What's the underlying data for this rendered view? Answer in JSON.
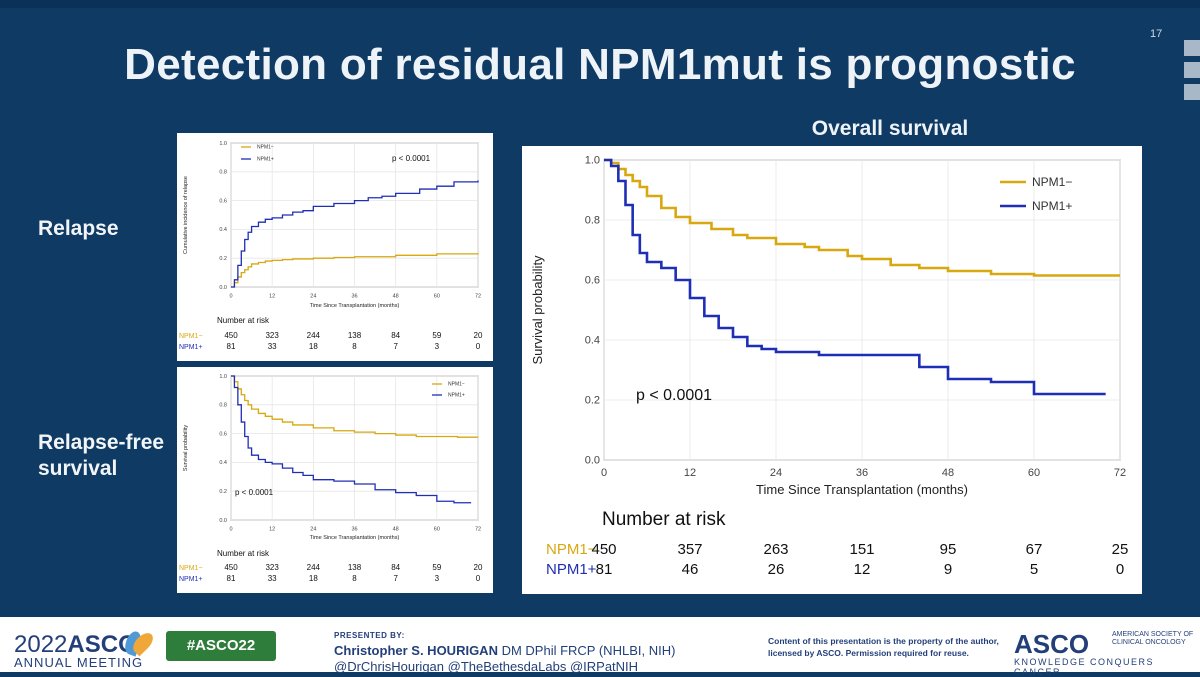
{
  "slide": {
    "number": "17",
    "title": "Detection of residual NPM1mut is prognostic",
    "labels": {
      "relapse": "Relapse",
      "rfs_line1": "Relapse-free",
      "rfs_line2": "survival"
    },
    "os_title": "Overall survival"
  },
  "colors": {
    "background": "#0f3a63",
    "npm1_neg": "#d7a80f",
    "npm1_pos": "#1f2fb5",
    "footer_text": "#233f7a",
    "hashtag_bg": "#2f7d3a"
  },
  "chart_data": [
    {
      "id": "relapse",
      "type": "line",
      "ylabel": "Cumulative incidence of relapse",
      "xlabel": "Time Since Transplantation (months)",
      "xlim": [
        0,
        72
      ],
      "ylim": [
        0,
        1.0
      ],
      "x_ticks": [
        "0",
        "12",
        "24",
        "36",
        "48",
        "60",
        "72"
      ],
      "y_ticks": [
        "0.0",
        "0.2",
        "0.4",
        "0.6",
        "0.8",
        "1.0"
      ],
      "grid": true,
      "legend": "top-left",
      "annotation": "p < 0.0001",
      "series": [
        {
          "name": "NPM1−",
          "color": "#d7a80f",
          "step": true,
          "x": [
            0,
            1,
            2,
            3,
            4,
            5,
            6,
            8,
            10,
            12,
            15,
            18,
            24,
            30,
            36,
            48,
            60,
            72
          ],
          "y": [
            0,
            0.03,
            0.07,
            0.1,
            0.12,
            0.14,
            0.16,
            0.17,
            0.18,
            0.185,
            0.19,
            0.195,
            0.2,
            0.205,
            0.21,
            0.22,
            0.23,
            0.235
          ]
        },
        {
          "name": "NPM1+",
          "color": "#1f2fb5",
          "step": true,
          "x": [
            0,
            1,
            2,
            3,
            4,
            5,
            6,
            8,
            10,
            12,
            15,
            18,
            21,
            24,
            30,
            36,
            40,
            44,
            48,
            55,
            60,
            65,
            72
          ],
          "y": [
            0,
            0.05,
            0.15,
            0.25,
            0.33,
            0.38,
            0.42,
            0.45,
            0.47,
            0.48,
            0.5,
            0.52,
            0.53,
            0.56,
            0.58,
            0.6,
            0.62,
            0.63,
            0.65,
            0.68,
            0.7,
            0.73,
            0.74
          ]
        }
      ],
      "risk_table": {
        "header": "Number at risk",
        "rows": [
          {
            "name": "NPM1−",
            "values": [
              "450",
              "323",
              "244",
              "138",
              "84",
              "59",
              "20"
            ]
          },
          {
            "name": "NPM1+",
            "values": [
              "81",
              "33",
              "18",
              "8",
              "7",
              "3",
              "0"
            ]
          }
        ]
      }
    },
    {
      "id": "rfs",
      "type": "line",
      "ylabel": "Survival probability",
      "xlabel": "Time Since Transplantation (months)",
      "xlim": [
        0,
        72
      ],
      "ylim": [
        0,
        1.0
      ],
      "x_ticks": [
        "0",
        "12",
        "24",
        "36",
        "48",
        "60",
        "72"
      ],
      "y_ticks": [
        "0.0",
        "0.2",
        "0.4",
        "0.6",
        "0.8",
        "1.0"
      ],
      "grid": true,
      "legend": "top-right",
      "annotation": "p < 0.0001",
      "series": [
        {
          "name": "NPM1−",
          "color": "#d7a80f",
          "step": true,
          "x": [
            0,
            1,
            2,
            3,
            4,
            5,
            6,
            8,
            10,
            12,
            15,
            18,
            24,
            30,
            36,
            42,
            48,
            54,
            60,
            66,
            72
          ],
          "y": [
            1.0,
            0.96,
            0.91,
            0.87,
            0.83,
            0.8,
            0.77,
            0.74,
            0.72,
            0.7,
            0.68,
            0.66,
            0.64,
            0.62,
            0.61,
            0.6,
            0.59,
            0.58,
            0.58,
            0.575,
            0.575
          ]
        },
        {
          "name": "NPM1+",
          "color": "#1f2fb5",
          "step": true,
          "x": [
            0,
            1,
            2,
            3,
            4,
            5,
            6,
            8,
            10,
            12,
            15,
            18,
            21,
            24,
            30,
            36,
            42,
            48,
            54,
            60,
            65,
            70
          ],
          "y": [
            1.0,
            0.92,
            0.8,
            0.68,
            0.58,
            0.5,
            0.45,
            0.42,
            0.4,
            0.39,
            0.36,
            0.33,
            0.31,
            0.28,
            0.27,
            0.25,
            0.21,
            0.19,
            0.17,
            0.13,
            0.12,
            0.12
          ]
        }
      ],
      "risk_table": {
        "header": "Number at risk",
        "rows": [
          {
            "name": "NPM1−",
            "values": [
              "450",
              "323",
              "244",
              "138",
              "84",
              "59",
              "20"
            ]
          },
          {
            "name": "NPM1+",
            "values": [
              "81",
              "33",
              "18",
              "8",
              "7",
              "3",
              "0"
            ]
          }
        ]
      }
    },
    {
      "id": "os",
      "type": "line",
      "title": "Overall survival",
      "ylabel": "Survival probability",
      "xlabel": "Time Since Transplantation (months)",
      "xlim": [
        0,
        72
      ],
      "ylim": [
        0,
        1.0
      ],
      "x_ticks": [
        "0",
        "12",
        "24",
        "36",
        "48",
        "60",
        "72"
      ],
      "y_ticks": [
        "0.0",
        "0.2",
        "0.4",
        "0.6",
        "0.8",
        "1.0"
      ],
      "grid": true,
      "legend": "top-right",
      "annotation": "p < 0.0001",
      "series": [
        {
          "name": "NPM1−",
          "color": "#d7a80f",
          "step": true,
          "x": [
            0,
            1,
            2,
            3,
            4,
            5,
            6,
            8,
            10,
            12,
            15,
            18,
            20,
            24,
            28,
            30,
            34,
            36,
            40,
            44,
            48,
            54,
            60,
            66,
            72
          ],
          "y": [
            1.0,
            0.99,
            0.97,
            0.95,
            0.93,
            0.91,
            0.88,
            0.84,
            0.81,
            0.79,
            0.77,
            0.75,
            0.74,
            0.72,
            0.71,
            0.7,
            0.68,
            0.67,
            0.65,
            0.64,
            0.63,
            0.62,
            0.615,
            0.615,
            0.615
          ]
        },
        {
          "name": "NPM1+",
          "color": "#1f2fb5",
          "step": true,
          "x": [
            0,
            1,
            2,
            3,
            4,
            5,
            6,
            8,
            10,
            12,
            14,
            16,
            18,
            20,
            22,
            24,
            30,
            36,
            42,
            44,
            48,
            54,
            58,
            60,
            66,
            70
          ],
          "y": [
            1.0,
            0.98,
            0.93,
            0.85,
            0.75,
            0.69,
            0.66,
            0.64,
            0.6,
            0.54,
            0.48,
            0.44,
            0.41,
            0.38,
            0.37,
            0.36,
            0.35,
            0.35,
            0.35,
            0.31,
            0.27,
            0.26,
            0.26,
            0.22,
            0.22,
            0.22
          ]
        }
      ],
      "risk_table": {
        "header": "Number at risk",
        "rows": [
          {
            "name": "NPM1−",
            "values": [
              "450",
              "357",
              "263",
              "151",
              "95",
              "67",
              "25"
            ]
          },
          {
            "name": "NPM1+",
            "values": [
              "81",
              "46",
              "26",
              "12",
              "9",
              "5",
              "0"
            ]
          }
        ]
      }
    }
  ],
  "footer": {
    "year": "2022",
    "asco": "ASCO",
    "meeting": "ANNUAL MEETING",
    "hashtag": "#ASCO22",
    "presented_by": "PRESENTED BY:",
    "presenter_name": "Christopher S. HOURIGAN",
    "presenter_creds": " DM DPhil FRCP (NHLBI, NIH)",
    "handles": "@DrChrisHourigan @TheBethesdaLabs @IRPatNIH",
    "copyright": "Content of this presentation is the property of the author, licensed by ASCO. Permission required for reuse.",
    "asco_logo": "ASCO",
    "society": "AMERICAN SOCIETY OF CLINICAL ONCOLOGY",
    "tagline": "KNOWLEDGE CONQUERS CANCER"
  }
}
